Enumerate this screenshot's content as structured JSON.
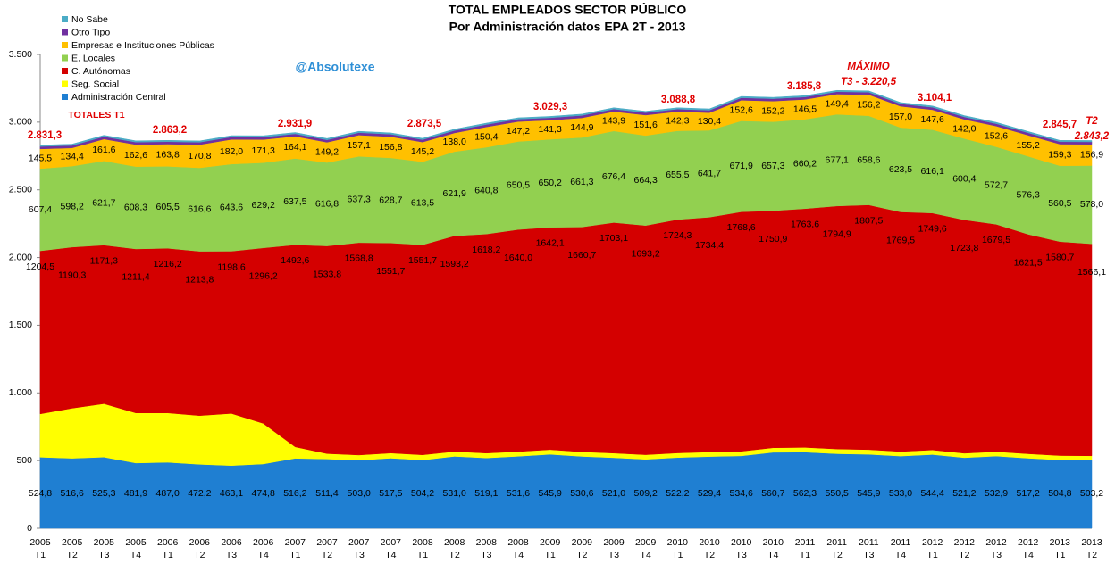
{
  "chart_data": {
    "type": "stacked-area",
    "title": "TOTAL EMPLEADOS SECTOR PÚBLICO",
    "subtitle": "Por Administración datos EPA 2T - 2013",
    "watermark": "@Absolutexe",
    "categories": [
      [
        "2005",
        "T1"
      ],
      [
        "2005",
        "T2"
      ],
      [
        "2005",
        "T3"
      ],
      [
        "2005",
        "T4"
      ],
      [
        "2006",
        "T1"
      ],
      [
        "2006",
        "T2"
      ],
      [
        "2006",
        "T3"
      ],
      [
        "2006",
        "T4"
      ],
      [
        "2007",
        "T1"
      ],
      [
        "2007",
        "T2"
      ],
      [
        "2007",
        "T3"
      ],
      [
        "2007",
        "T4"
      ],
      [
        "2008",
        "T1"
      ],
      [
        "2008",
        "T2"
      ],
      [
        "2008",
        "T3"
      ],
      [
        "2008",
        "T4"
      ],
      [
        "2009",
        "T1"
      ],
      [
        "2009",
        "T2"
      ],
      [
        "2009",
        "T3"
      ],
      [
        "2009",
        "T4"
      ],
      [
        "2010",
        "T1"
      ],
      [
        "2010",
        "T2"
      ],
      [
        "2010",
        "T3"
      ],
      [
        "2010",
        "T4"
      ],
      [
        "2011",
        "T1"
      ],
      [
        "2011",
        "T2"
      ],
      [
        "2011",
        "T3"
      ],
      [
        "2011",
        "T4"
      ],
      [
        "2012",
        "T1"
      ],
      [
        "2012",
        "T2"
      ],
      [
        "2012",
        "T3"
      ],
      [
        "2012",
        "T4"
      ],
      [
        "2013",
        "T1"
      ],
      [
        "2013",
        "T2"
      ]
    ],
    "ylim": [
      0,
      3500
    ],
    "yticks": [
      0,
      500,
      {
        "value": 1000,
        "label": "1.000"
      },
      {
        "value": 1500,
        "label": "1.500"
      },
      {
        "value": 2000,
        "label": "2.000"
      },
      {
        "value": 2500,
        "label": "2.500"
      },
      {
        "value": 3000,
        "label": "3.000"
      },
      {
        "value": 3500,
        "label": "3.500"
      }
    ],
    "series": [
      {
        "name": "Administración Central",
        "color": "#1f7fd2",
        "values": [
          524.8,
          516.6,
          525.3,
          481.9,
          487.0,
          472.2,
          463.1,
          474.8,
          516.2,
          511.4,
          503.0,
          517.5,
          504.2,
          531.0,
          519.1,
          531.6,
          545.9,
          530.6,
          521.0,
          509.2,
          522.2,
          529.4,
          534.6,
          560.7,
          562.3,
          550.5,
          545.9,
          533.0,
          544.4,
          521.2,
          532.9,
          517.2,
          504.8,
          503.2
        ],
        "value_labels": [
          "524,8",
          "516,6",
          "525,3",
          "481,9",
          "487,0",
          "472,2",
          "463,1",
          "474,8",
          "516,2",
          "511,4",
          "503,0",
          "517,5",
          "504,2",
          "531,0",
          "519,1",
          "531,6",
          "545,9",
          "530,6",
          "521,0",
          "509,2",
          "522,2",
          "529,4",
          "534,6",
          "560,7",
          "562,3",
          "550,5",
          "545,9",
          "533,0",
          "544,4",
          "521,2",
          "532,9",
          "517,2",
          "504,8",
          "503,2"
        ]
      },
      {
        "name": "Seg. Social",
        "color": "#ffff00",
        "values": [
          320,
          370,
          395,
          370,
          365,
          360,
          385,
          300,
          85,
          40,
          38,
          38,
          38,
          36,
          36,
          35,
          35,
          34,
          34,
          34,
          34,
          34,
          34,
          34,
          35,
          35,
          35,
          34,
          34,
          33,
          33,
          33,
          32,
          32
        ]
      },
      {
        "name": "C. Autónomas",
        "color": "#d40000",
        "values": [
          1204.5,
          1190.3,
          1171.3,
          1211.4,
          1216.2,
          1213.8,
          1198.6,
          1296.2,
          1492.6,
          1533.8,
          1568.8,
          1551.7,
          1551.7,
          1593.2,
          1618.2,
          1640.0,
          1642.1,
          1660.7,
          1703.1,
          1693.2,
          1724.3,
          1734.4,
          1768.6,
          1750.9,
          1763.6,
          1794.9,
          1807.5,
          1769.5,
          1749.6,
          1723.8,
          1679.5,
          1621.5,
          1580.7,
          1566.1
        ],
        "value_labels": [
          "1204,5",
          "1190,3",
          "1171,3",
          "1211,4",
          "1216,2",
          "1213,8",
          "1198,6",
          "1296,2",
          "1492,6",
          "1533,8",
          "1568,8",
          "1551,7",
          "1551,7",
          "1593,2",
          "1618,2",
          "1640,0",
          "1642,1",
          "1660,7",
          "1703,1",
          "1693,2",
          "1724,3",
          "1734,4",
          "1768,6",
          "1750,9",
          "1763,6",
          "1794,9",
          "1807,5",
          "1769,5",
          "1749,6",
          "1723,8",
          "1679,5",
          "1621,5",
          "1580,7",
          "1566,1"
        ]
      },
      {
        "name": "E. Locales",
        "color": "#92d050",
        "values": [
          607.4,
          598.2,
          621.7,
          608.3,
          605.5,
          616.6,
          643.6,
          629.2,
          637.5,
          616.8,
          637.3,
          628.7,
          613.5,
          621.9,
          640.8,
          650.5,
          650.2,
          661.3,
          676.4,
          664.3,
          655.5,
          641.7,
          671.9,
          657.3,
          660.2,
          677.1,
          658.6,
          623.5,
          616.1,
          600.4,
          572.7,
          576.3,
          560.5,
          578.0
        ],
        "value_labels": [
          "607,4",
          "598,2",
          "621,7",
          "608,3",
          "605,5",
          "616,6",
          "643,6",
          "629,2",
          "637,5",
          "616,8",
          "637,3",
          "628,7",
          "613,5",
          "621,9",
          "640,8",
          "650,5",
          "650,2",
          "661,3",
          "676,4",
          "664,3",
          "655,5",
          "641,7",
          "671,9",
          "657,3",
          "660,2",
          "677,1",
          "658,6",
          "623,5",
          "616,1",
          "600,4",
          "572,7",
          "576,3",
          "560,5",
          "578,0"
        ]
      },
      {
        "name": "Empresas e Instituciones Públicas",
        "color": "#ffc000",
        "values": [
          145.5,
          134.4,
          161.6,
          162.6,
          163.8,
          170.8,
          182.0,
          171.3,
          164.1,
          149.2,
          157.1,
          156.8,
          145.2,
          138.0,
          150.4,
          147.2,
          141.3,
          144.9,
          143.9,
          151.6,
          142.3,
          130.4,
          152.6,
          152.2,
          146.5,
          149.4,
          156.2,
          157.0,
          147.6,
          142.0,
          152.6,
          155.2,
          159.3,
          156.9
        ],
        "value_labels": [
          "145,5",
          "134,4",
          "161,6",
          "162,6",
          "163,8",
          "170,8",
          "182,0",
          "171,3",
          "164,1",
          "149,2",
          "157,1",
          "156,8",
          "145,2",
          "138,0",
          "150,4",
          "147,2",
          "141,3",
          "144,9",
          "143,9",
          "151,6",
          "142,3",
          "130,4",
          "152,6",
          "152,2",
          "146,5",
          "149,4",
          "156,2",
          "157,0",
          "147,6",
          "142,0",
          "152,6",
          "155,2",
          "159,3",
          "156,9"
        ]
      },
      {
        "name": "Otro Tipo",
        "color": "#7030a0",
        "values": [
          18,
          18,
          18,
          18,
          18,
          18,
          18,
          18,
          18,
          18,
          18,
          18,
          18,
          18,
          18,
          18,
          18,
          18,
          18,
          18,
          18,
          18,
          18,
          18,
          18,
          18,
          18,
          18,
          18,
          18,
          18,
          18,
          18,
          18
        ]
      },
      {
        "name": "No Sabe",
        "color": "#4bacc6",
        "values": [
          10,
          10,
          10,
          10,
          10,
          10,
          10,
          10,
          10,
          10,
          10,
          10,
          10,
          10,
          10,
          10,
          10,
          10,
          10,
          10,
          10,
          10,
          10,
          10,
          10,
          10,
          10,
          10,
          10,
          10,
          10,
          10,
          10,
          10
        ]
      }
    ],
    "annotations": [
      "2.831,3",
      "TOTALES T1",
      "2.863,2",
      "2.931,9",
      "2.873,5",
      "3.029,3",
      "3.088,8",
      "3.185,8",
      "MÁXIMO",
      "T3 - 3.220,5",
      "3.104,1",
      "2.845,7",
      "T2",
      "2.843,2"
    ]
  }
}
